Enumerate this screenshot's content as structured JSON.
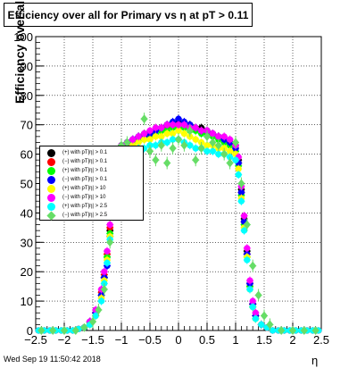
{
  "chart_data": {
    "type": "scatter",
    "title": "Efficiency over all for Primary vs    η at pT > 0.11",
    "xlabel": "η",
    "ylabel": "Efficiency over all (%)",
    "xlim": [
      -2.5,
      2.5
    ],
    "ylim": [
      0,
      100
    ],
    "x_ticks": [
      "−2.5",
      "−2",
      "−1.5",
      "−1",
      "−0.5",
      "0",
      "0.5",
      "1",
      "1.5",
      "2",
      "2.5"
    ],
    "y_ticks": [
      "0",
      "10",
      "20",
      "30",
      "40",
      "50",
      "60",
      "70",
      "80",
      "90",
      "100"
    ],
    "grid": true,
    "legend_placement": "left-middle",
    "series": [
      {
        "name": "(+) with pT|η| > 0.1",
        "color": "#000000",
        "marker": "circle",
        "x": [
          -2.45,
          -2.35,
          -2.25,
          -2.15,
          -2.05,
          -1.95,
          -1.85,
          -1.75,
          -1.65,
          -1.55,
          -1.45,
          -1.35,
          -1.3,
          -1.25,
          -1.2,
          -1.15,
          -1.1,
          -1.05,
          -1.0,
          -0.9,
          -0.8,
          -0.7,
          -0.6,
          -0.5,
          -0.4,
          -0.3,
          -0.2,
          -0.1,
          0.0,
          0.1,
          0.2,
          0.3,
          0.4,
          0.5,
          0.6,
          0.7,
          0.8,
          0.9,
          1.0,
          1.05,
          1.1,
          1.15,
          1.2,
          1.25,
          1.3,
          1.35,
          1.45,
          1.55,
          1.65,
          1.75,
          1.85,
          1.95,
          2.05,
          2.15,
          2.25,
          2.35,
          2.45
        ],
        "y": [
          0,
          0,
          0,
          0,
          0,
          0,
          0,
          0.5,
          1,
          3,
          6,
          12,
          18,
          25,
          34,
          44,
          54,
          60,
          63,
          64,
          65,
          66,
          67,
          67,
          68,
          69,
          70,
          70,
          71,
          70,
          70,
          69,
          69,
          68,
          67,
          66,
          65,
          64,
          63,
          58,
          48,
          38,
          27,
          16,
          9,
          5,
          2,
          1,
          0,
          0,
          0,
          0,
          0,
          0,
          0,
          0,
          0
        ]
      },
      {
        "name": "(−) with pT|η| > 0.1",
        "color": "#ff0000",
        "marker": "circle",
        "x": [
          -2.45,
          -2.35,
          -2.25,
          -2.15,
          -2.05,
          -1.95,
          -1.85,
          -1.75,
          -1.65,
          -1.55,
          -1.45,
          -1.35,
          -1.3,
          -1.25,
          -1.2,
          -1.15,
          -1.1,
          -1.05,
          -1.0,
          -0.9,
          -0.8,
          -0.7,
          -0.6,
          -0.5,
          -0.4,
          -0.3,
          -0.2,
          -0.1,
          0.0,
          0.1,
          0.2,
          0.3,
          0.4,
          0.5,
          0.6,
          0.7,
          0.8,
          0.9,
          1.0,
          1.05,
          1.1,
          1.15,
          1.2,
          1.25,
          1.3,
          1.35,
          1.45,
          1.55,
          1.65,
          1.75,
          1.85,
          1.95,
          2.05,
          2.15,
          2.25,
          2.35,
          2.45
        ],
        "y": [
          0,
          0,
          0,
          0,
          0,
          0,
          0,
          0.5,
          1,
          3,
          6,
          13,
          19,
          26,
          35,
          45,
          55,
          60,
          62,
          63,
          64,
          65,
          66,
          67,
          68,
          68,
          69,
          70,
          70,
          70,
          69,
          69,
          68,
          68,
          67,
          66,
          65,
          64,
          62,
          57,
          47,
          37,
          26,
          15,
          9,
          5,
          2,
          1,
          0,
          0,
          0,
          0,
          0,
          0,
          0,
          0,
          0
        ]
      },
      {
        "name": "(+) with pT|η| > 0.1",
        "color": "#00ff00",
        "marker": "circle",
        "x": [
          -2.45,
          -2.35,
          -2.25,
          -2.15,
          -2.05,
          -1.95,
          -1.85,
          -1.75,
          -1.65,
          -1.55,
          -1.45,
          -1.35,
          -1.3,
          -1.25,
          -1.2,
          -1.15,
          -1.1,
          -1.05,
          -1.0,
          -0.9,
          -0.8,
          -0.7,
          -0.6,
          -0.5,
          -0.4,
          -0.3,
          -0.2,
          -0.1,
          0.0,
          0.1,
          0.2,
          0.3,
          0.4,
          0.5,
          0.6,
          0.7,
          0.8,
          0.9,
          1.0,
          1.05,
          1.1,
          1.15,
          1.2,
          1.25,
          1.3,
          1.35,
          1.45,
          1.55,
          1.65,
          1.75,
          1.85,
          1.95,
          2.05,
          2.15,
          2.25,
          2.35,
          2.45
        ],
        "y": [
          0,
          0,
          0,
          0,
          0,
          0,
          0,
          0.5,
          1,
          2.5,
          5,
          12,
          18,
          25,
          33,
          43,
          53,
          59,
          62,
          63,
          64,
          65,
          65,
          66,
          67,
          68,
          68,
          69,
          69,
          69,
          68,
          68,
          67,
          67,
          66,
          65,
          64,
          63,
          61,
          56,
          46,
          36,
          25,
          15,
          8,
          4,
          2,
          1,
          0,
          0,
          0,
          0,
          0,
          0,
          0,
          0,
          0
        ]
      },
      {
        "name": "(−) with pT|η| > 0.1",
        "color": "#0000ff",
        "marker": "circle",
        "x": [
          -2.45,
          -2.35,
          -2.25,
          -2.15,
          -2.05,
          -1.95,
          -1.85,
          -1.75,
          -1.65,
          -1.55,
          -1.45,
          -1.35,
          -1.3,
          -1.25,
          -1.2,
          -1.15,
          -1.1,
          -1.05,
          -1.0,
          -0.9,
          -0.8,
          -0.7,
          -0.6,
          -0.5,
          -0.4,
          -0.3,
          -0.2,
          -0.1,
          0.0,
          0.1,
          0.2,
          0.3,
          0.4,
          0.5,
          0.6,
          0.7,
          0.8,
          0.9,
          1.0,
          1.05,
          1.1,
          1.15,
          1.2,
          1.25,
          1.3,
          1.35,
          1.45,
          1.55,
          1.65,
          1.75,
          1.85,
          1.95,
          2.05,
          2.15,
          2.25,
          2.35,
          2.45
        ],
        "y": [
          0,
          0,
          0,
          0,
          0,
          0,
          0,
          0.5,
          1,
          3,
          6,
          12,
          18,
          22,
          32,
          43,
          54,
          60,
          63,
          64,
          65,
          66,
          66,
          67,
          68,
          69,
          70,
          71,
          72,
          71,
          70,
          69,
          68,
          68,
          67,
          66,
          65,
          64,
          62,
          57,
          47,
          37,
          26,
          16,
          9,
          5,
          2,
          1,
          0,
          0,
          0,
          0,
          0,
          0,
          0,
          0,
          0
        ]
      },
      {
        "name": "(+) with pT|η| > 10",
        "color": "#ffff00",
        "marker": "circle",
        "x": [
          -2.45,
          -2.35,
          -2.25,
          -2.15,
          -2.05,
          -1.95,
          -1.85,
          -1.75,
          -1.65,
          -1.55,
          -1.45,
          -1.35,
          -1.3,
          -1.25,
          -1.2,
          -1.15,
          -1.1,
          -1.05,
          -1.0,
          -0.9,
          -0.8,
          -0.7,
          -0.6,
          -0.5,
          -0.4,
          -0.3,
          -0.2,
          -0.1,
          0.0,
          0.1,
          0.2,
          0.3,
          0.4,
          0.5,
          0.6,
          0.7,
          0.8,
          0.9,
          1.0,
          1.05,
          1.1,
          1.15,
          1.2,
          1.25,
          1.3,
          1.35,
          1.45,
          1.55,
          1.65,
          1.75,
          1.85,
          1.95,
          2.05,
          2.15,
          2.25,
          2.35,
          2.45
        ],
        "y": [
          0,
          0,
          0,
          0,
          0,
          0,
          0,
          0.5,
          1,
          2,
          5,
          11,
          17,
          24,
          32,
          42,
          52,
          58,
          61,
          62,
          63,
          64,
          65,
          65,
          66,
          66,
          67,
          67,
          68,
          67,
          66,
          65,
          64,
          63,
          63,
          62,
          62,
          61,
          60,
          55,
          45,
          35,
          25,
          14,
          8,
          4,
          2,
          1,
          0,
          0,
          0,
          0,
          0,
          0,
          0,
          0,
          0
        ]
      },
      {
        "name": "(−) with pT|η| > 10",
        "color": "#ff00ff",
        "marker": "circle",
        "x": [
          -2.45,
          -2.35,
          -2.25,
          -2.15,
          -2.05,
          -1.95,
          -1.85,
          -1.75,
          -1.65,
          -1.55,
          -1.45,
          -1.35,
          -1.3,
          -1.25,
          -1.2,
          -1.15,
          -1.1,
          -1.05,
          -1.0,
          -0.9,
          -0.8,
          -0.7,
          -0.6,
          -0.5,
          -0.4,
          -0.3,
          -0.2,
          -0.1,
          0.0,
          0.1,
          0.2,
          0.3,
          0.4,
          0.5,
          0.6,
          0.7,
          0.8,
          0.9,
          1.0,
          1.05,
          1.1,
          1.15,
          1.2,
          1.25,
          1.3,
          1.35,
          1.45,
          1.55,
          1.65,
          1.75,
          1.85,
          1.95,
          2.05,
          2.15,
          2.25,
          2.35,
          2.45
        ],
        "y": [
          0,
          0,
          0,
          0,
          0,
          0,
          0,
          0.5,
          1,
          3,
          7,
          14,
          20,
          27,
          36,
          46,
          56,
          61,
          63,
          64,
          65,
          66,
          67,
          68,
          69,
          69,
          70,
          70,
          70,
          70,
          69,
          69,
          68,
          68,
          67,
          66,
          66,
          65,
          63,
          59,
          49,
          39,
          28,
          17,
          10,
          6,
          2,
          1,
          0,
          0,
          0,
          0,
          0,
          0,
          0,
          0,
          0
        ]
      },
      {
        "name": "(+) with pT|η| > 2.5",
        "color": "#00ffff",
        "marker": "circle",
        "x": [
          -2.45,
          -2.35,
          -2.25,
          -2.15,
          -2.05,
          -1.95,
          -1.85,
          -1.75,
          -1.65,
          -1.55,
          -1.45,
          -1.35,
          -1.3,
          -1.25,
          -1.2,
          -1.15,
          -1.1,
          -1.05,
          -1.0,
          -0.9,
          -0.8,
          -0.7,
          -0.6,
          -0.5,
          -0.4,
          -0.3,
          -0.2,
          -0.1,
          0.0,
          0.1,
          0.2,
          0.3,
          0.4,
          0.5,
          0.6,
          0.7,
          0.8,
          0.9,
          1.0,
          1.05,
          1.1,
          1.15,
          1.2,
          1.25,
          1.3,
          1.35,
          1.45,
          1.55,
          1.65,
          1.75,
          1.85,
          1.95,
          2.05,
          2.15,
          2.25,
          2.35,
          2.45
        ],
        "y": [
          0,
          0,
          0,
          0,
          0,
          0,
          0,
          0.5,
          1,
          2,
          5,
          10,
          16,
          23,
          31,
          41,
          51,
          56,
          59,
          60,
          61,
          62,
          62,
          63,
          63,
          64,
          64,
          65,
          65,
          64,
          63,
          62,
          62,
          61,
          61,
          60,
          60,
          59,
          58,
          53,
          44,
          34,
          24,
          14,
          8,
          4,
          2,
          1,
          0,
          0,
          0,
          0,
          0,
          0,
          0,
          0,
          0
        ]
      },
      {
        "name": "(−) with pT|η| > 2.5",
        "color": "#66dd66",
        "marker": "diamond",
        "x": [
          -2.4,
          -2.2,
          -2.0,
          -1.8,
          -1.65,
          -1.5,
          -1.4,
          -1.3,
          -1.2,
          -1.15,
          -1.1,
          -1.0,
          -0.9,
          -0.8,
          -0.7,
          -0.6,
          -0.5,
          -0.4,
          -0.3,
          -0.2,
          -0.1,
          0.0,
          0.1,
          0.2,
          0.3,
          0.4,
          0.5,
          0.6,
          0.7,
          0.8,
          0.9,
          1.0,
          1.1,
          1.2,
          1.3,
          1.4,
          1.5,
          1.6,
          1.8,
          2.0,
          2.2,
          2.4
        ],
        "y": [
          0,
          0,
          0,
          0,
          1,
          3,
          7,
          14,
          30,
          42,
          58,
          63,
          64,
          57,
          59,
          72,
          61,
          58,
          63,
          57,
          62,
          65,
          63,
          68,
          58,
          62,
          66,
          64,
          63,
          60,
          57,
          64,
          50,
          36,
          22,
          12,
          5,
          2,
          0,
          0,
          0,
          0
        ]
      }
    ]
  },
  "footer": {
    "date": "Wed Sep 19 11:50:42 2018"
  }
}
